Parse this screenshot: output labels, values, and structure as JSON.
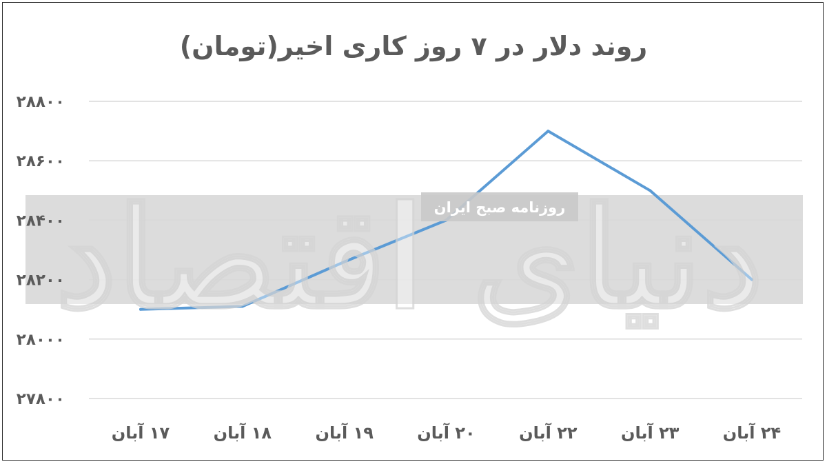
{
  "chart_data": {
    "type": "line",
    "title": "روند دلار در ۷ روز کاری اخیر(تومان)",
    "xlabel": "",
    "ylabel": "",
    "categories": [
      "۱۷ آبان",
      "۱۸ آبان",
      "۱۹ آبان",
      "۲۰ آبان",
      "۲۲ آبان",
      "۲۳ آبان",
      "۲۴ آبان"
    ],
    "series": [
      {
        "values": [
          28100,
          28110,
          28260,
          28400,
          28700,
          28500,
          28200
        ]
      }
    ],
    "ylim": [
      27800,
      28800
    ],
    "yticks": [
      28800,
      28600,
      28400,
      28200,
      28000,
      27800
    ],
    "ytick_labels": [
      "۲۸۸۰۰",
      "۲۸۶۰۰",
      "۲۸۴۰۰",
      "۲۸۲۰۰",
      "۲۸۰۰۰",
      "۲۷۸۰۰"
    ],
    "grid": true,
    "legend": "none",
    "colors": {
      "line": "#5b9bd5",
      "grid": "#d9d9d9",
      "text": "#5a5a5a",
      "watermark_band": "#d6d6d6"
    }
  },
  "watermark": {
    "banner_text": "روزنامه صبح ایران",
    "logo_text": "دنیای اقتصاد"
  }
}
